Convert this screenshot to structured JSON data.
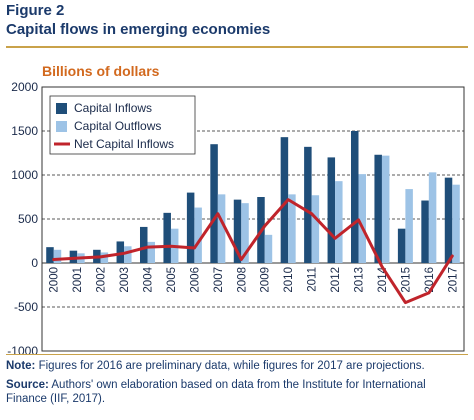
{
  "figure": {
    "label": "Figure 2",
    "title": "Capital flows in emerging economies",
    "unit_label": "Billions of dollars",
    "note_label": "Note:",
    "note_text": "Figures for 2016 are preliminary data, while figures for 2017 are projections.",
    "source_label": "Source:",
    "source_text": "Authors' own elaboration based on data from the Institute for International Finance (IIF, 2017)."
  },
  "colors": {
    "inflows": "#1f4e79",
    "outflows": "#9dc3e6",
    "net": "#c0242b",
    "accent_rule": "#c9a24a"
  },
  "chart_data": {
    "type": "bar",
    "categories": [
      "2000",
      "2001",
      "2002",
      "2003",
      "2004",
      "2005",
      "2006",
      "2007",
      "2008",
      "2009",
      "2010",
      "2011",
      "2012",
      "2013",
      "2014",
      "2015",
      "2016",
      "2017"
    ],
    "series": [
      {
        "name": "Capital Inflows",
        "type": "bar",
        "values": [
          180,
          140,
          150,
          245,
          410,
          570,
          800,
          1350,
          720,
          750,
          1430,
          1320,
          1200,
          1500,
          1230,
          390,
          710,
          970
        ]
      },
      {
        "name": "Capital Outflows",
        "type": "bar",
        "values": [
          150,
          110,
          120,
          190,
          240,
          390,
          630,
          780,
          680,
          320,
          780,
          770,
          930,
          1010,
          1220,
          840,
          1030,
          890
        ]
      },
      {
        "name": "Net Capital Inflows",
        "type": "line",
        "values": [
          40,
          55,
          70,
          110,
          180,
          190,
          170,
          560,
          40,
          420,
          720,
          560,
          280,
          490,
          -40,
          -450,
          -340,
          80
        ]
      }
    ],
    "ylim": [
      -1000,
      2000
    ],
    "yticks": [
      -1000,
      -500,
      0,
      500,
      1000,
      1500,
      2000
    ],
    "grid": true,
    "legend_position": "top-left"
  }
}
